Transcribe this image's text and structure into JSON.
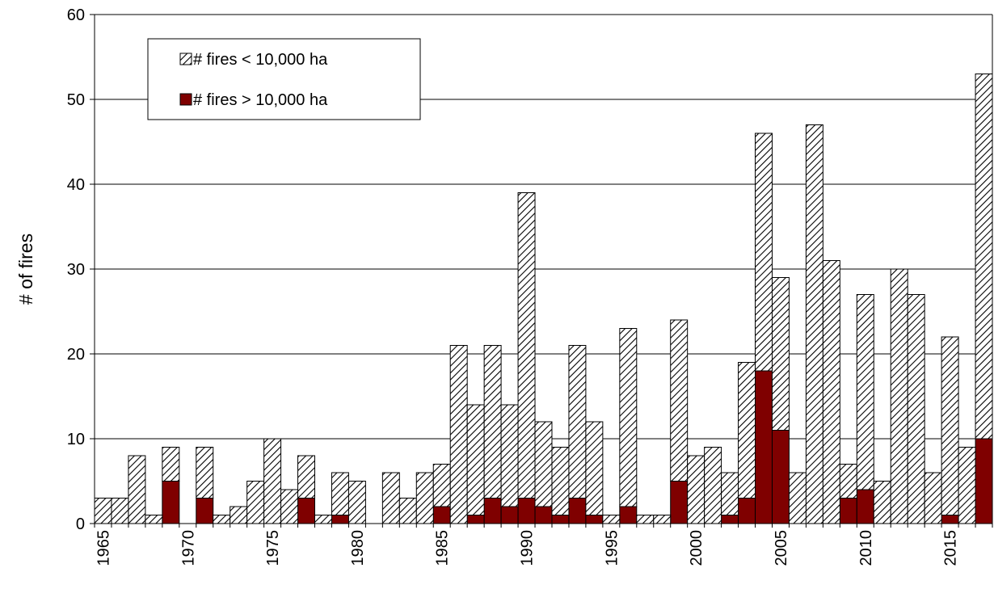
{
  "chart_data": {
    "type": "bar",
    "stacked": true,
    "ylabel": "# of fires",
    "categories": [
      "1965",
      null,
      null,
      null,
      null,
      "1970",
      null,
      null,
      null,
      null,
      "1975",
      null,
      null,
      null,
      null,
      "1980",
      null,
      null,
      null,
      null,
      "1985",
      null,
      null,
      null,
      null,
      "1990",
      null,
      null,
      null,
      null,
      "1995",
      null,
      null,
      null,
      null,
      "2000",
      null,
      null,
      null,
      null,
      "2005",
      null,
      null,
      null,
      null,
      "2010",
      null,
      null,
      null,
      null,
      "2015",
      null,
      null
    ],
    "series": [
      {
        "name": "# fires < 10,000 ha",
        "color": "#000000",
        "hatch": true,
        "values": [
          3,
          3,
          8,
          1,
          4,
          0,
          6,
          1,
          2,
          5,
          10,
          4,
          5,
          1,
          5,
          5,
          0,
          6,
          3,
          6,
          5,
          21,
          13,
          18,
          12,
          36,
          10,
          8,
          18,
          11,
          1,
          21,
          1,
          1,
          19,
          8,
          9,
          5,
          16,
          28,
          18,
          6,
          47,
          31,
          4,
          23,
          5,
          30,
          27,
          6,
          21,
          9,
          43
        ]
      },
      {
        "name": "# fires > 10,000 ha",
        "color": "#7f0000",
        "hatch": false,
        "values": [
          0,
          0,
          0,
          0,
          5,
          0,
          3,
          0,
          0,
          0,
          0,
          0,
          3,
          0,
          1,
          0,
          0,
          0,
          0,
          0,
          2,
          0,
          1,
          3,
          2,
          3,
          2,
          1,
          3,
          1,
          0,
          2,
          0,
          0,
          5,
          0,
          0,
          1,
          3,
          18,
          11,
          0,
          0,
          0,
          3,
          4,
          0,
          0,
          0,
          0,
          1,
          0,
          10
        ]
      }
    ],
    "ylim": [
      0,
      60
    ],
    "yticks": [
      0,
      10,
      20,
      30,
      40,
      50,
      60
    ],
    "grid": true,
    "legend": "upper left"
  }
}
